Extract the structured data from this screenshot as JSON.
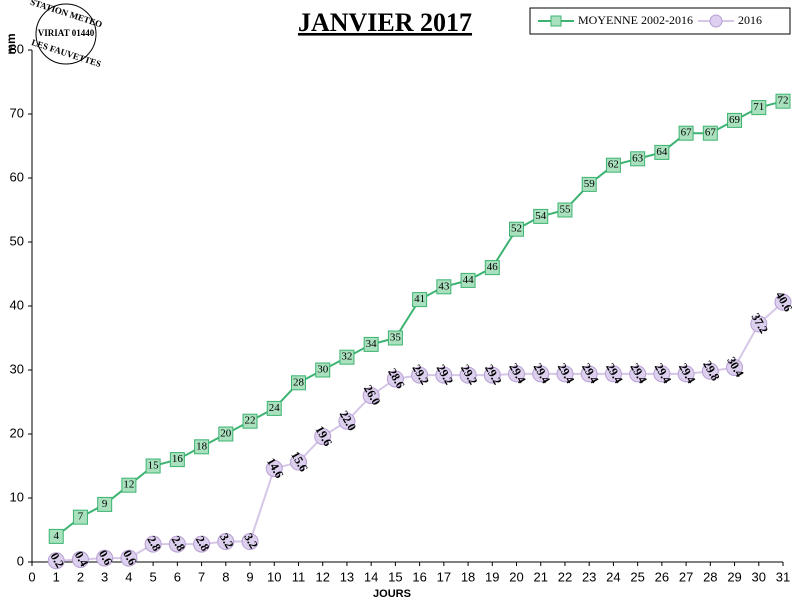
{
  "chart_data": {
    "type": "line",
    "title": "JANVIER 2017",
    "x_label": "JOURS",
    "y_label": "mm",
    "x": [
      1,
      2,
      3,
      4,
      5,
      6,
      7,
      8,
      9,
      10,
      11,
      12,
      13,
      14,
      15,
      16,
      17,
      18,
      19,
      20,
      21,
      22,
      23,
      24,
      25,
      26,
      27,
      28,
      29,
      30,
      31
    ],
    "series": [
      {
        "name": "MOYENNE 2002-2016",
        "color": "#3cb371",
        "marker": "square",
        "values": [
          4,
          7,
          9,
          12,
          15,
          16,
          18,
          20,
          22,
          24,
          28,
          30,
          32,
          34,
          35,
          41,
          43,
          44,
          46,
          52,
          54,
          55,
          59,
          62,
          63,
          64,
          67,
          67,
          69,
          71,
          72
        ]
      },
      {
        "name": "2016",
        "color": "#d6c6e8",
        "marker": "circle",
        "values": [
          0.2,
          0.4,
          0.6,
          0.6,
          2.8,
          2.8,
          2.8,
          3.2,
          3.2,
          14.6,
          15.6,
          19.6,
          22,
          26,
          28.6,
          29.2,
          29.2,
          29.2,
          29.2,
          29.4,
          29.4,
          29.4,
          29.4,
          29.4,
          29.4,
          29.4,
          29.4,
          29.8,
          30.4,
          37.2,
          40.6
        ],
        "value_labels": [
          "0.2",
          "0.4",
          "0.6",
          "0.6",
          "2.8",
          "2.8",
          "2.8",
          "3.2",
          "3.2",
          "14.6",
          "15.6",
          "19.6",
          "22.0",
          "26.0",
          "28.6",
          "29.2",
          "29.2",
          "29.2",
          "29.2",
          "29.4",
          "29.4",
          "29.4",
          "29.4",
          "29.4",
          "29.4",
          "29.4",
          "29.4",
          "29.8",
          "30.4",
          "37.2",
          "40.6"
        ]
      }
    ],
    "xlim": [
      0,
      31
    ],
    "xticks": [
      0,
      1,
      2,
      3,
      4,
      5,
      6,
      7,
      8,
      9,
      10,
      11,
      12,
      13,
      14,
      15,
      16,
      17,
      18,
      19,
      20,
      21,
      22,
      23,
      24,
      25,
      26,
      27,
      28,
      29,
      30,
      31
    ],
    "ylim": [
      0,
      80
    ],
    "yticks": [
      0,
      10,
      20,
      30,
      40,
      50,
      60,
      70,
      80
    ],
    "grid": false,
    "legend": "top-right"
  },
  "logo": {
    "lines": [
      "STATION METEO",
      "VIRIAT 01440",
      "LES FAUVETTES"
    ]
  }
}
